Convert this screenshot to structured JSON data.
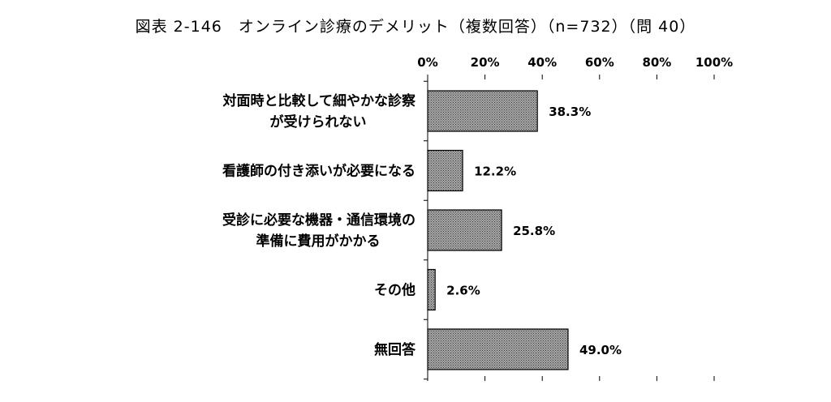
{
  "chart_data": {
    "type": "bar",
    "orientation": "horizontal",
    "title": "図表 2-146　オンライン診療のデメリット（複数回答）（n=732）（問 40）",
    "categories": [
      [
        "対面時と比較して細やかな診察",
        "が受けられない"
      ],
      [
        "看護師の付き添いが必要になる"
      ],
      [
        "受診に必要な機器・通信環境の",
        "準備に費用がかかる"
      ],
      [
        "その他"
      ],
      [
        "無回答"
      ]
    ],
    "values": [
      38.3,
      12.2,
      25.8,
      2.6,
      49.0
    ],
    "value_labels": [
      "38.3%",
      "12.2%",
      "25.8%",
      "2.6%",
      "49.0%"
    ],
    "x_ticks": [
      "0%",
      "20%",
      "40%",
      "60%",
      "80%",
      "100%"
    ],
    "xlim": [
      0,
      100
    ],
    "xlabel": "",
    "ylabel": "",
    "grid": false,
    "axis_position": "top",
    "bar_fill": "#8f8f8f",
    "bar_stroke": "#000000"
  }
}
